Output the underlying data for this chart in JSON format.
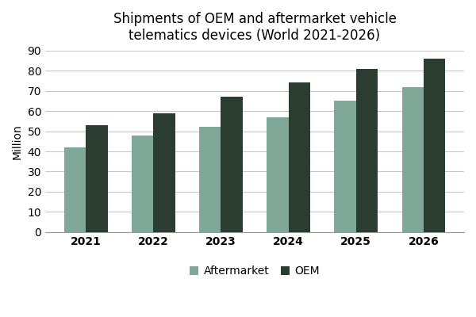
{
  "title": "Shipments of OEM and aftermarket vehicle\ntelematics devices (World 2021-2026)",
  "years": [
    2021,
    2022,
    2023,
    2024,
    2025,
    2026
  ],
  "aftermarket_values": [
    42,
    48,
    52,
    57,
    65,
    72
  ],
  "oem_values": [
    53,
    59,
    67,
    74,
    81,
    86
  ],
  "aftermarket_color": "#7fa899",
  "oem_color": "#2b3d30",
  "ylabel": "Million",
  "ylim": [
    0,
    90
  ],
  "yticks": [
    0,
    10,
    20,
    30,
    40,
    50,
    60,
    70,
    80,
    90
  ],
  "legend_labels": [
    "Aftermarket",
    "OEM"
  ],
  "bar_width": 0.32,
  "title_fontsize": 12,
  "axis_fontsize": 10,
  "tick_fontsize": 10,
  "legend_fontsize": 10,
  "background_color": "#ffffff",
  "grid_color": "#c8c8c8",
  "figsize": [
    6.0,
    4.0
  ],
  "dpi": 100
}
